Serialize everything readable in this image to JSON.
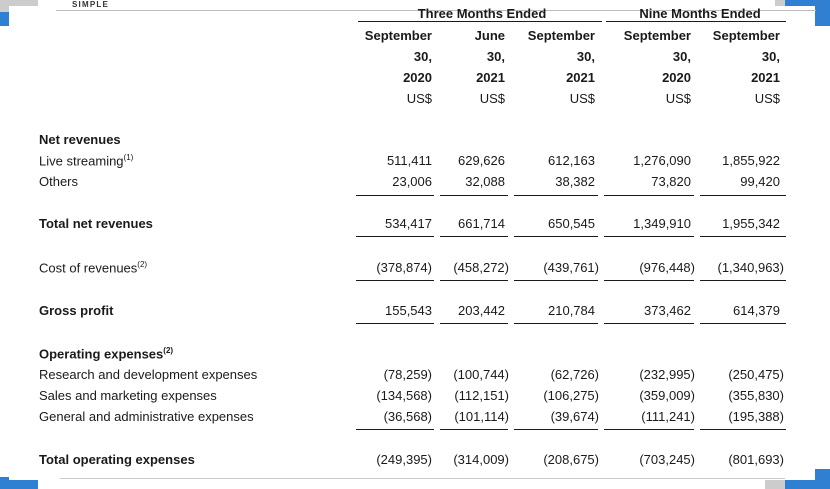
{
  "brand": "SIMPLE",
  "groups": {
    "three_months": "Three Months Ended",
    "nine_months": "Nine Months Ended"
  },
  "columns": [
    {
      "month": "September",
      "day": "30,",
      "year": "2020",
      "currency": "US$"
    },
    {
      "month": "June",
      "day": "30,",
      "year": "2021",
      "currency": "US$"
    },
    {
      "month": "September",
      "day": "30,",
      "year": "2021",
      "currency": "US$"
    },
    {
      "month": "September",
      "day": "30,",
      "year": "2020",
      "currency": "US$"
    },
    {
      "month": "September",
      "day": "30,",
      "year": "2021",
      "currency": "US$"
    }
  ],
  "rows": {
    "net_revenues": {
      "label": "Net revenues"
    },
    "live_streaming": {
      "label": "Live streaming",
      "note": "(1)",
      "values": [
        "511,411",
        "629,626",
        "612,163",
        "1,276,090",
        "1,855,922"
      ]
    },
    "others": {
      "label": "Others",
      "values": [
        "23,006",
        "32,088",
        "38,382",
        "73,820",
        "99,420"
      ]
    },
    "total_net_revenues": {
      "label": "Total net revenues",
      "values": [
        "534,417",
        "661,714",
        "650,545",
        "1,349,910",
        "1,955,342"
      ]
    },
    "cost_of_revenues": {
      "label": "Cost of revenues",
      "note": "(2)",
      "values": [
        "(378,874)",
        "(458,272)",
        "(439,761)",
        "(976,448)",
        "(1,340,963)"
      ]
    },
    "gross_profit": {
      "label": "Gross profit",
      "values": [
        "155,543",
        "203,442",
        "210,784",
        "373,462",
        "614,379"
      ]
    },
    "operating_expenses": {
      "label": "Operating expenses",
      "note": "(2)"
    },
    "research": {
      "label": "Research and development expenses",
      "values": [
        "(78,259)",
        "(100,744)",
        "(62,726)",
        "(232,995)",
        "(250,475)"
      ]
    },
    "sales": {
      "label": "Sales and marketing expenses",
      "values": [
        "(134,568)",
        "(112,151)",
        "(106,275)",
        "(359,009)",
        "(355,830)"
      ]
    },
    "general": {
      "label": "General and administrative expenses",
      "values": [
        "(36,568)",
        "(101,114)",
        "(39,674)",
        "(111,241)",
        "(195,388)"
      ]
    },
    "total_opex": {
      "label": "Total operating expenses",
      "values": [
        "(249,395)",
        "(314,009)",
        "(208,675)",
        "(703,245)",
        "(801,693)"
      ]
    }
  }
}
